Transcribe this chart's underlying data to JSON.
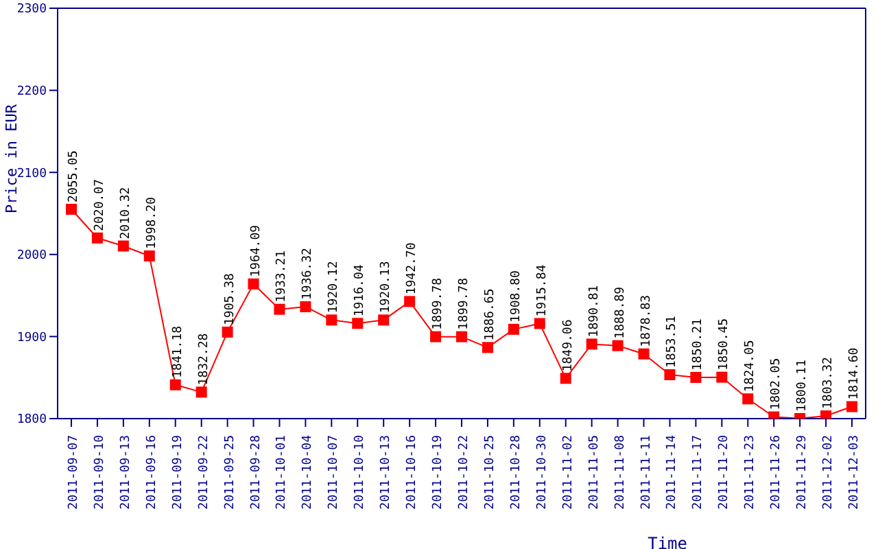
{
  "chart_data": {
    "type": "line",
    "xlabel": "Time",
    "ylabel": "Price in EUR",
    "categories": [
      "2011-09-07",
      "2011-09-10",
      "2011-09-13",
      "2011-09-16",
      "2011-09-19",
      "2011-09-22",
      "2011-09-25",
      "2011-09-28",
      "2011-10-01",
      "2011-10-04",
      "2011-10-07",
      "2011-10-10",
      "2011-10-13",
      "2011-10-16",
      "2011-10-19",
      "2011-10-22",
      "2011-10-25",
      "2011-10-28",
      "2011-10-30",
      "2011-11-02",
      "2011-11-05",
      "2011-11-08",
      "2011-11-11",
      "2011-11-14",
      "2011-11-17",
      "2011-11-20",
      "2011-11-23",
      "2011-11-26",
      "2011-11-29",
      "2011-12-02",
      "2011-12-03"
    ],
    "series": [
      {
        "color": "#ff0000",
        "values": [
          2055.05,
          2020.07,
          2010.32,
          1998.2,
          1841.18,
          1832.28,
          1905.38,
          1964.09,
          1933.21,
          1936.32,
          1920.12,
          1916.04,
          1920.13,
          1942.7,
          1899.78,
          1899.78,
          1886.65,
          1908.8,
          1915.84,
          1849.06,
          1890.81,
          1888.89,
          1878.83,
          1853.51,
          1850.21,
          1850.45,
          1824.05,
          1802.05,
          1800.11,
          1803.32,
          1814.6
        ],
        "value_labels": [
          "2055.05",
          "2020.07",
          "2010.32",
          "1998.20",
          "1841.18",
          "1832.28",
          "1905.38",
          "1964.09",
          "1933.21",
          "1936.32",
          "1920.12",
          "1916.04",
          "1920.13",
          "1942.70",
          "1899.78",
          "1899.78",
          "1886.65",
          "1908.80",
          "1915.84",
          "1849.06",
          "1890.81",
          "1888.89",
          "1878.83",
          "1853.51",
          "1850.21",
          "1850.45",
          "1824.05",
          "1802.05",
          "1800.11",
          "1803.32",
          "1814.60"
        ]
      }
    ],
    "ylim": [
      1800,
      2300
    ],
    "yticks": [
      1800,
      1900,
      2000,
      2100,
      2200,
      2300
    ],
    "marker": "square",
    "line_style": "solid"
  }
}
